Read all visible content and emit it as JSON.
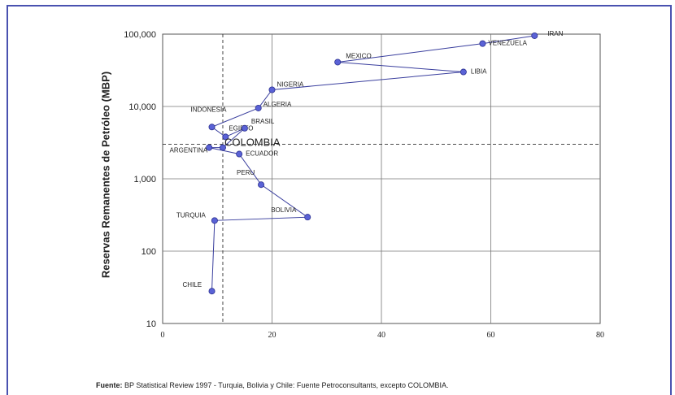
{
  "chart_data": {
    "type": "scatter",
    "ylabel": "Reservas Remanentes de Petróleo  (MBP)",
    "xlabel": "",
    "x_ticks": [
      "0",
      "20",
      "40",
      "60",
      "80"
    ],
    "y_ticks": [
      "10",
      "100",
      "1,000",
      "10,000",
      "100,000"
    ],
    "xlim": [
      0,
      80
    ],
    "ylim": [
      10,
      100000
    ],
    "y_scale": "log",
    "reference_lines": {
      "x": 11,
      "y": 3000
    },
    "grid": true,
    "points": [
      {
        "label": "IRAN",
        "x": 68,
        "y": 95000
      },
      {
        "label": "VENEZUELA",
        "x": 58.5,
        "y": 74000
      },
      {
        "label": "MEXICO",
        "x": 32,
        "y": 41000
      },
      {
        "label": "LIBIA",
        "x": 55,
        "y": 30000
      },
      {
        "label": "NIGERIA",
        "x": 20,
        "y": 17000
      },
      {
        "label": "ALGERIA",
        "x": 17.5,
        "y": 9500
      },
      {
        "label": "INDONESIA",
        "x": 9,
        "y": 5200
      },
      {
        "label": "EGIPTO",
        "x": 11.5,
        "y": 3800
      },
      {
        "label": "BRASIL",
        "x": 15,
        "y": 5000
      },
      {
        "label": "COLOMBIA",
        "x": 11,
        "y": 2700
      },
      {
        "label": "ARGENTINA",
        "x": 8.5,
        "y": 2700
      },
      {
        "label": "ECUADOR",
        "x": 14,
        "y": 2200
      },
      {
        "label": "PERU",
        "x": 18,
        "y": 830
      },
      {
        "label": "BOLIVIA",
        "x": 26.5,
        "y": 295
      },
      {
        "label": "TURQUIA",
        "x": 9.5,
        "y": 265
      },
      {
        "label": "CHILE",
        "x": 9,
        "y": 28
      }
    ]
  },
  "source": {
    "prefix": "Fuente:",
    "text": " BP Statistical Review  1997  -  Turquia, Bolivia y Chile: Fuente Petroconsultants, excepto COLOMBIA."
  }
}
